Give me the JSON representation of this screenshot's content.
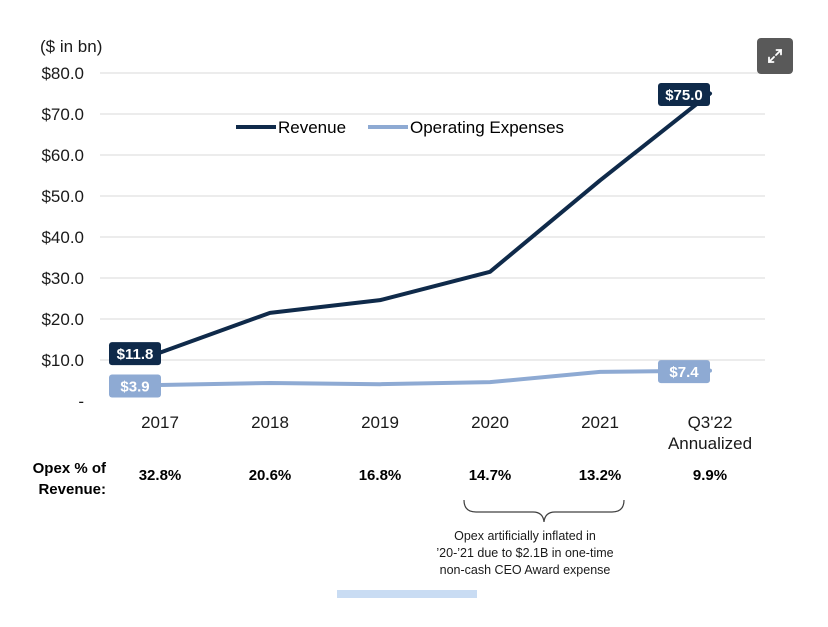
{
  "unit_label": "($ in bn)",
  "expand_button": {
    "icon": "expand-icon"
  },
  "chart_data": {
    "type": "line",
    "categories": [
      "2017",
      "2018",
      "2019",
      "2020",
      "2021",
      "Q3'22 Annualized"
    ],
    "category_lines": [
      [
        "2017"
      ],
      [
        "2018"
      ],
      [
        "2019"
      ],
      [
        "2020"
      ],
      [
        "2021"
      ],
      [
        "Q3'22",
        "Annualized"
      ]
    ],
    "ylim": [
      0,
      80
    ],
    "yticks": [
      0,
      10,
      20,
      30,
      40,
      50,
      60,
      70,
      80
    ],
    "ytick_labels": [
      "-",
      "$10.0",
      "$20.0",
      "$30.0",
      "$40.0",
      "$50.0",
      "$60.0",
      "$70.0",
      "$80.0"
    ],
    "grid": true,
    "legend_position": "top-center",
    "series": [
      {
        "name": "Revenue",
        "color": "#0f2a4a",
        "values": [
          11.8,
          21.5,
          24.6,
          31.5,
          53.8,
          75.0
        ],
        "start_label": "$11.8",
        "end_label": "$75.0"
      },
      {
        "name": "Operating Expenses",
        "color": "#8eaad3",
        "values": [
          3.9,
          4.4,
          4.1,
          4.6,
          7.1,
          7.4
        ],
        "start_label": "$3.9",
        "end_label": "$7.4"
      }
    ]
  },
  "opex_row": {
    "title_line1": "Opex % of",
    "title_line2": "Revenue:",
    "values": [
      "32.8%",
      "20.6%",
      "16.8%",
      "14.7%",
      "13.2%",
      "9.9%"
    ]
  },
  "note": {
    "line1": "Opex artificially inflated in",
    "line2": "’20-’21 due to $2.1B in one-time",
    "line3": "non-cash CEO Award expense"
  }
}
